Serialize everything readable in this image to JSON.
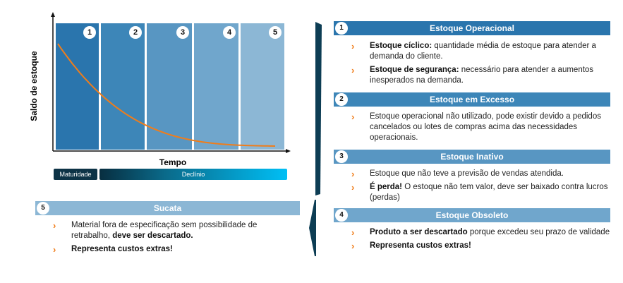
{
  "chart": {
    "ylabel": "Saldo de estoque",
    "xlabel": "Tempo",
    "columns": [
      "1",
      "2",
      "3",
      "4",
      "5"
    ],
    "column_colors": [
      "#2a75ad",
      "#3d86b8",
      "#5896c2",
      "#70a6cc",
      "#8cb7d5"
    ],
    "curve_color": "#f07d1a",
    "phases": {
      "maturity": "Maturidade",
      "decline": "Declínio"
    }
  },
  "sections": [
    {
      "num": "1",
      "title": "Estoque Operacional",
      "color": "#2a75ad",
      "bullets": [
        [
          {
            "t": "Estoque cíclico:",
            "b": true
          },
          {
            "t": " quantidade média de estoque para atender a demanda do cliente.",
            "b": false
          }
        ],
        [
          {
            "t": "Estoque de segurança:",
            "b": true
          },
          {
            "t": " necessário para atender a aumentos inesperados na demanda.",
            "b": false
          }
        ]
      ]
    },
    {
      "num": "2",
      "title": "Estoque em Excesso",
      "color": "#3d86b8",
      "bullets": [
        [
          {
            "t": "Estoque operacional não utilizado, pode existir devido a pedidos cancelados ou lotes de compras acima das necessidades operacionais.",
            "b": false
          }
        ]
      ]
    },
    {
      "num": "3",
      "title": "Estoque Inativo",
      "color": "#5896c2",
      "bullets": [
        [
          {
            "t": "Estoque que não teve a previsão de vendas atendida.",
            "b": false
          }
        ],
        [
          {
            "t": "É perda!",
            "b": true
          },
          {
            "t": " O estoque não tem valor, deve ser baixado contra lucros (perdas)",
            "b": false
          }
        ]
      ]
    },
    {
      "num": "4",
      "title": "Estoque Obsoleto",
      "color": "#70a6cc",
      "bullets": [
        [
          {
            "t": "Produto a ser descartado",
            "b": true
          },
          {
            "t": " porque excedeu seu prazo de validade",
            "b": false
          }
        ],
        [
          {
            "t": "Representa custos extras!",
            "b": true
          }
        ]
      ]
    },
    {
      "num": "5",
      "title": "Sucata",
      "color": "#8cb7d5",
      "bullets": [
        [
          {
            "t": "Material fora de especificação sem possibilidade de retrabalho, ",
            "b": false
          },
          {
            "t": "deve ser descartado.",
            "b": true
          }
        ],
        [
          {
            "t": "Representa custos extras!",
            "b": true
          }
        ]
      ]
    }
  ],
  "bracket_color": "#0d3d54"
}
